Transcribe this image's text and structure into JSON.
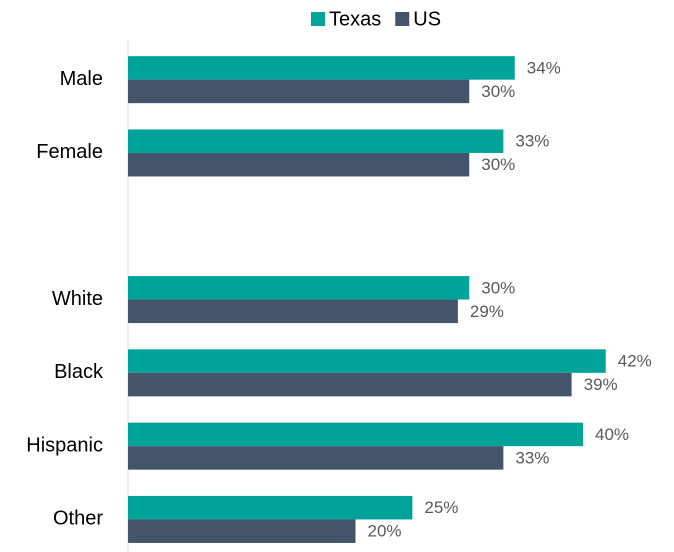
{
  "chart_data": {
    "type": "hbar",
    "categories": [
      "Male",
      "Female",
      null,
      "White",
      "Black",
      "Hispanic",
      "Other"
    ],
    "series": [
      {
        "name": "Texas",
        "color": "#00a39a",
        "values": [
          34,
          33,
          null,
          30,
          42,
          40,
          25
        ],
        "value_labels": [
          "34%",
          "33%",
          null,
          "30%",
          "42%",
          "40%",
          "25%"
        ]
      },
      {
        "name": "US",
        "color": "#44546a",
        "values": [
          30,
          30,
          null,
          29,
          39,
          33,
          20
        ],
        "value_labels": [
          "30%",
          "30%",
          null,
          "29%",
          "39%",
          "33%",
          "20%"
        ]
      }
    ],
    "xlim": [
      0,
      48
    ],
    "legend": "top"
  }
}
